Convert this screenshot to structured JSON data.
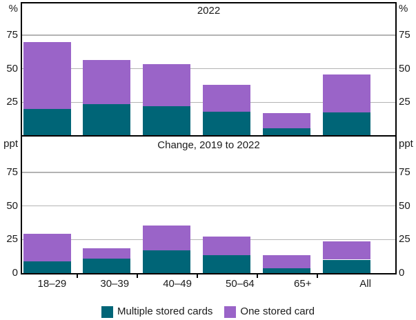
{
  "chart_data": [
    {
      "type": "bar",
      "stacked": true,
      "panel": "top",
      "title": "2022",
      "unit": "%",
      "categories": [
        "18–29",
        "30–39",
        "40–49",
        "50–64",
        "65+",
        "All"
      ],
      "series": [
        {
          "name": "Multiple stored cards",
          "color": "#006577",
          "values": [
            20,
            23.5,
            22,
            18,
            5.5,
            17.5
          ]
        },
        {
          "name": "One stored card",
          "color": "#9a64c8",
          "values": [
            49.5,
            33,
            31.5,
            20,
            11.5,
            28
          ]
        }
      ],
      "totals": [
        69.5,
        56.5,
        53.5,
        38,
        17,
        45.5
      ],
      "yticks": [
        25,
        50,
        75
      ],
      "ylim": [
        0,
        100
      ],
      "grid": true,
      "legend_position": "bottom"
    },
    {
      "type": "bar",
      "stacked": true,
      "panel": "bottom",
      "title": "Change, 2019 to 2022",
      "unit": "ppt",
      "categories": [
        "18–29",
        "30–39",
        "40–49",
        "50–64",
        "65+",
        "All"
      ],
      "series": [
        {
          "name": "Multiple stored cards",
          "color": "#006577",
          "values": [
            8.5,
            11,
            17,
            13.5,
            3.5,
            10
          ]
        },
        {
          "name": "One stored card",
          "color": "#9a64c8",
          "values": [
            20.5,
            7.5,
            18.5,
            13.5,
            10,
            13.5
          ]
        }
      ],
      "totals": [
        29,
        18.5,
        35.5,
        27,
        13.5,
        23.5
      ],
      "yticks": [
        0,
        25,
        50,
        75
      ],
      "ylim": [
        0,
        100
      ],
      "grid": true,
      "legend_position": "bottom"
    }
  ],
  "legend": {
    "items": [
      {
        "label": "Multiple stored cards",
        "color": "#006577"
      },
      {
        "label": "One stored card",
        "color": "#9a64c8"
      }
    ]
  },
  "colors": {
    "multiple_stored_cards": "#006577",
    "one_stored_card": "#9a64c8",
    "gridline": "#b3b3b3",
    "axis": "#000000",
    "background": "#ffffff"
  }
}
